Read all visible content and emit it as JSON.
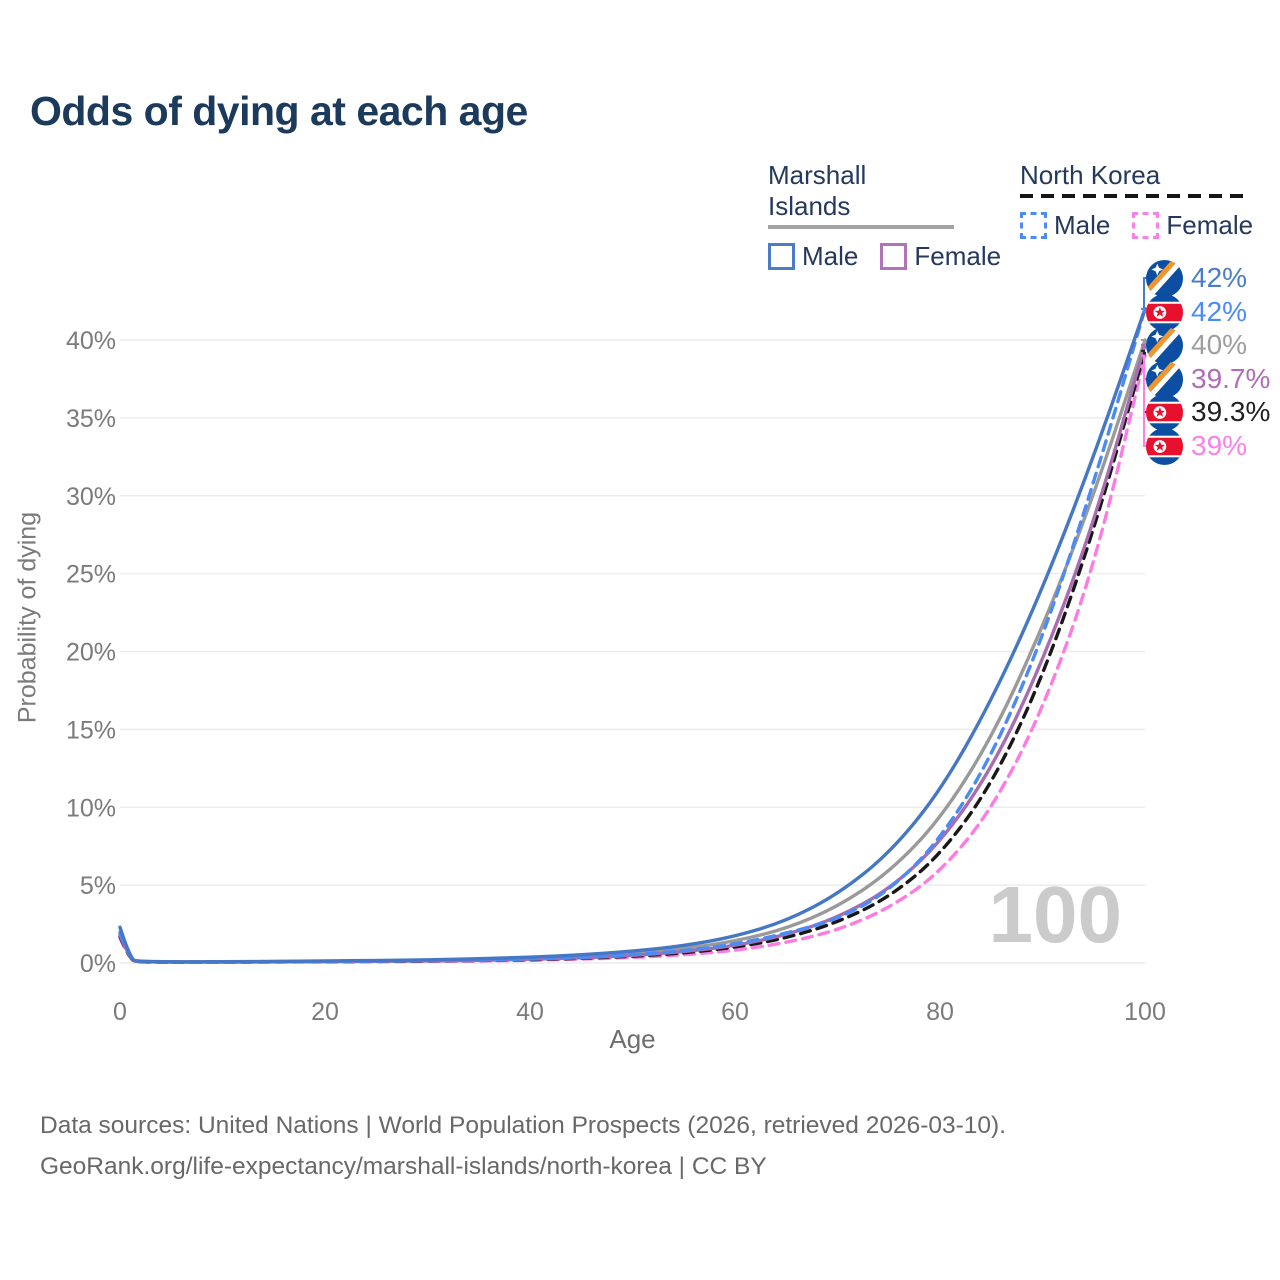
{
  "title": "Odds of dying at each age",
  "legend": {
    "groups": [
      {
        "label": "Marshall Islands",
        "line_style": "solid",
        "items": [
          {
            "label": "Male",
            "color": "#4a7cc7",
            "dashed": false
          },
          {
            "label": "Female",
            "color": "#b173b8",
            "dashed": false
          }
        ]
      },
      {
        "label": "North Korea",
        "line_style": "dashed",
        "items": [
          {
            "label": "Male",
            "color": "#4b8bf5",
            "dashed": true
          },
          {
            "label": "Female",
            "color": "#fb80e9",
            "dashed": true
          }
        ]
      }
    ]
  },
  "chart_data": {
    "type": "line",
    "title": "Odds of dying at each age",
    "xlabel": "Age",
    "ylabel": "Probability of dying",
    "xlim": [
      0,
      100
    ],
    "ylim": [
      0,
      44
    ],
    "xticks": [
      0,
      20,
      40,
      60,
      80,
      100
    ],
    "yticks": [
      "0%",
      "5%",
      "10%",
      "15%",
      "20%",
      "25%",
      "30%",
      "35%",
      "40%"
    ],
    "grid": "horizontal",
    "legend_position": "top-right",
    "watermark": "100",
    "x": [
      0,
      1,
      2,
      5,
      10,
      15,
      20,
      25,
      30,
      35,
      40,
      45,
      50,
      55,
      60,
      65,
      70,
      75,
      80,
      85,
      90,
      95,
      100
    ],
    "series": [
      {
        "name": "Marshall Islands Male",
        "color": "#4577c4",
        "dashed": false,
        "flag": "marshall-islands",
        "end_label": "42%",
        "label_color": "#4a7cc7",
        "values": [
          2.3,
          0.2,
          0.1,
          0.08,
          0.08,
          0.1,
          0.13,
          0.16,
          0.2,
          0.27,
          0.37,
          0.52,
          0.75,
          1.1,
          1.7,
          2.7,
          4.4,
          7.0,
          11.0,
          16.8,
          24.0,
          32.5,
          42.0
        ]
      },
      {
        "name": "North Korea Male",
        "color": "#4b8bf5",
        "dashed": true,
        "flag": "north-korea",
        "end_label": "42%",
        "label_color": "#4b8bf5",
        "values": [
          1.9,
          0.16,
          0.08,
          0.06,
          0.07,
          0.08,
          0.1,
          0.12,
          0.15,
          0.19,
          0.26,
          0.36,
          0.52,
          0.78,
          1.2,
          1.9,
          2.8,
          4.6,
          7.9,
          13.2,
          20.8,
          30.8,
          42.0
        ]
      },
      {
        "name": "Marshall Islands Both sexes",
        "color": "#9a9a9a",
        "dashed": false,
        "flag": "marshall-islands",
        "end_label": "40%",
        "label_color": "#9e9e9e",
        "values": [
          2.0,
          0.17,
          0.09,
          0.07,
          0.07,
          0.09,
          0.11,
          0.13,
          0.17,
          0.22,
          0.3,
          0.42,
          0.6,
          0.9,
          1.4,
          2.2,
          3.6,
          5.8,
          9.2,
          14.4,
          21.5,
          30.0,
          40.0
        ]
      },
      {
        "name": "Marshall Islands Female",
        "color": "#a86daf",
        "dashed": false,
        "flag": "marshall-islands",
        "end_label": "39.7%",
        "label_color": "#b06cb8",
        "values": [
          1.8,
          0.15,
          0.08,
          0.06,
          0.06,
          0.07,
          0.09,
          0.11,
          0.13,
          0.17,
          0.24,
          0.33,
          0.48,
          0.72,
          1.1,
          1.8,
          2.9,
          4.7,
          7.7,
          12.4,
          19.3,
          28.2,
          39.7
        ]
      },
      {
        "name": "North Korea Both sexes",
        "color": "#181818",
        "dashed": true,
        "flag": "north-korea",
        "end_label": "39.3%",
        "label_color": "#212121",
        "values": [
          1.7,
          0.14,
          0.07,
          0.05,
          0.06,
          0.07,
          0.09,
          0.1,
          0.12,
          0.16,
          0.21,
          0.3,
          0.43,
          0.64,
          1.0,
          1.6,
          2.6,
          4.2,
          6.9,
          11.4,
          18.3,
          27.7,
          39.3
        ]
      },
      {
        "name": "North Korea Female",
        "color": "#fb7ce2",
        "dashed": true,
        "flag": "north-korea",
        "end_label": "39%",
        "label_color": "#fb80e9",
        "values": [
          1.6,
          0.13,
          0.06,
          0.05,
          0.05,
          0.06,
          0.07,
          0.09,
          0.1,
          0.13,
          0.18,
          0.25,
          0.35,
          0.52,
          0.8,
          1.3,
          2.1,
          3.5,
          5.8,
          9.8,
          16.2,
          25.3,
          39.0
        ]
      }
    ]
  },
  "footer": {
    "line1": "Data sources: United Nations | World Population Prospects (2026, retrieved 2026-03-10).",
    "line2": "GeoRank.org/life-expectancy/marshall-islands/north-korea | CC BY"
  }
}
